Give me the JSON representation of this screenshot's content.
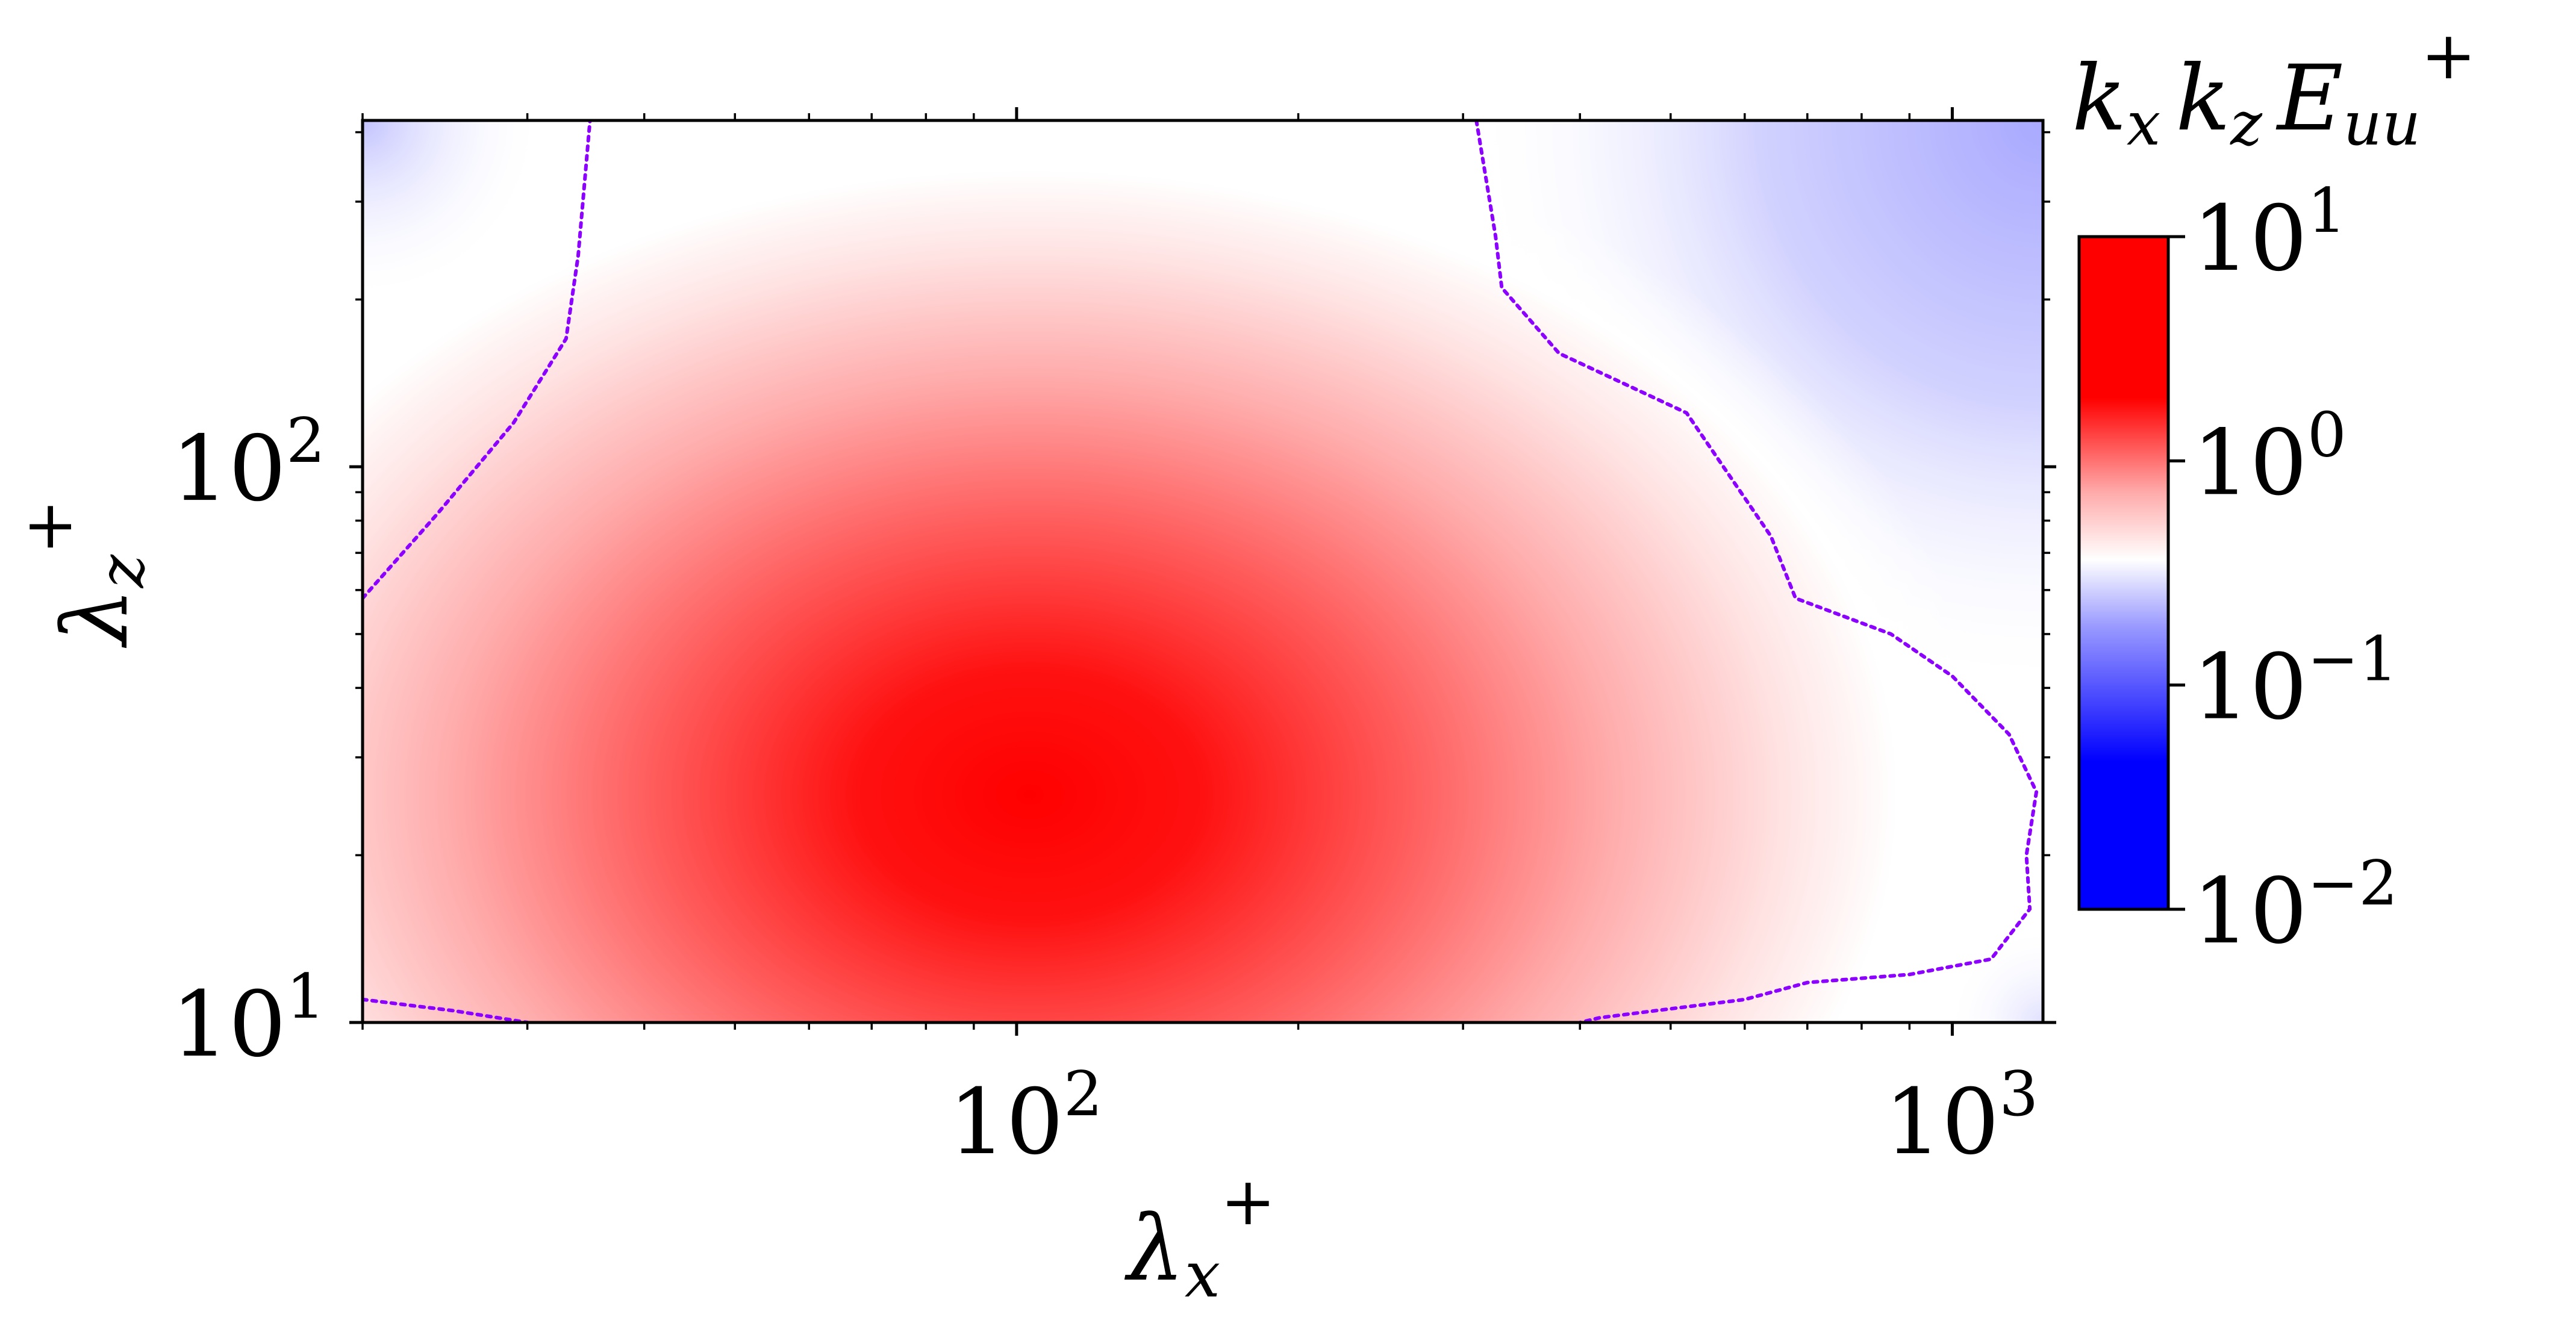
{
  "chart_data": {
    "type": "heatmap",
    "title": "",
    "xlabel": "λ_x^+",
    "ylabel": "λ_z^+",
    "x_scale": "log",
    "y_scale": "log",
    "xlim": [
      20,
      1250
    ],
    "ylim": [
      10,
      420
    ],
    "x_ticks": [
      {
        "value": 100,
        "base": "10",
        "exp": "2"
      },
      {
        "value": 1000,
        "base": "10",
        "exp": "3"
      }
    ],
    "y_ticks": [
      {
        "value": 10,
        "base": "10",
        "exp": "1"
      },
      {
        "value": 100,
        "base": "10",
        "exp": "2"
      }
    ],
    "grid": false,
    "field": {
      "quantity": "k_x k_z E_uu^+",
      "peak": {
        "x": 100,
        "y": 24,
        "value": 2.5
      },
      "description": "single broad peak near λx+≈100, λz+≈25; values fall to ~0.1 at top-left and top-right corners"
    },
    "contour": {
      "level": 0.3,
      "color": "#8b00ff",
      "style": "dotted",
      "paths": [
        [
          [
            20,
            58
          ],
          [
            24,
            82
          ],
          [
            29,
            120
          ],
          [
            33,
            170
          ],
          [
            34,
            240
          ],
          [
            35,
            420
          ]
        ],
        [
          [
            310,
            420
          ],
          [
            325,
            260
          ],
          [
            330,
            210
          ],
          [
            380,
            160
          ],
          [
            520,
            125
          ],
          [
            640,
            75
          ],
          [
            680,
            58
          ],
          [
            860,
            50
          ],
          [
            1000,
            42
          ],
          [
            1150,
            33
          ],
          [
            1230,
            26
          ],
          [
            1200,
            20
          ],
          [
            1210,
            16
          ],
          [
            1100,
            13
          ],
          [
            900,
            12.2
          ],
          [
            700,
            11.8
          ],
          [
            600,
            11.0
          ],
          [
            420,
            10.2
          ],
          [
            400,
            10
          ]
        ],
        [
          [
            20,
            11.0
          ],
          [
            25,
            10.5
          ],
          [
            30,
            10
          ]
        ]
      ]
    },
    "colorbar": {
      "label": {
        "k1": "k",
        "s1": "x",
        "k2": "k",
        "s2": "z",
        "E": "E",
        "sE": "uu",
        "sup": "+"
      },
      "scale": "log",
      "range": [
        0.01,
        10
      ],
      "ticks": [
        {
          "value": 10,
          "base": "10",
          "exp": "1"
        },
        {
          "value": 1,
          "base": "10",
          "exp": "0"
        },
        {
          "value": 0.1,
          "base": "10",
          "exp": "−1"
        },
        {
          "value": 0.01,
          "base": "10",
          "exp": "−2"
        }
      ],
      "colors": {
        "low": "#0000ff",
        "mid": "#ffffff",
        "high": "#ff0000"
      }
    }
  }
}
